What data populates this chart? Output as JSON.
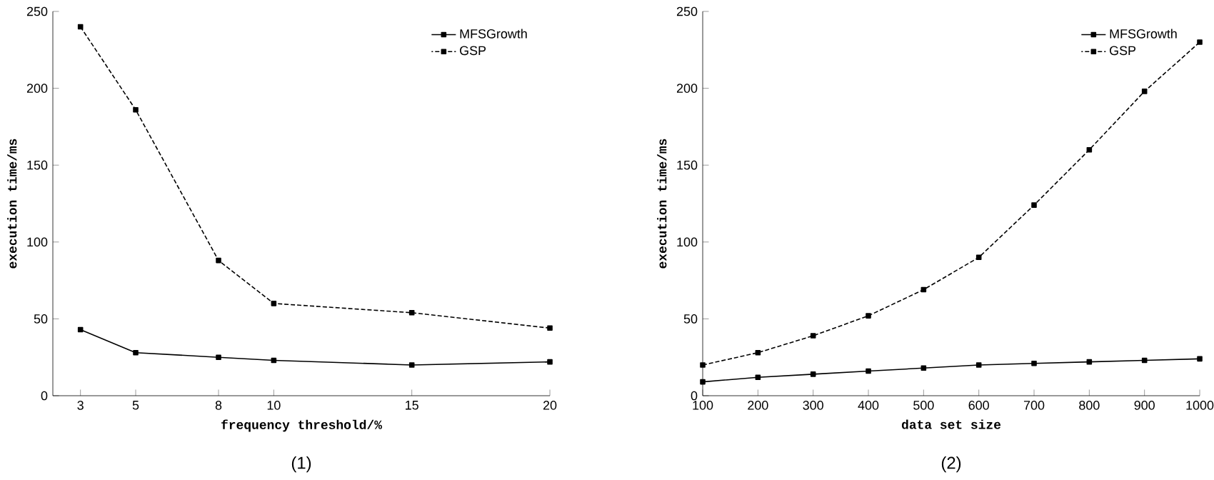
{
  "chart_data": [
    {
      "type": "line",
      "x": [
        3,
        5,
        8,
        10,
        15,
        20
      ],
      "xlim": [
        2,
        20
      ],
      "xticks": [
        3,
        5,
        8,
        10,
        15,
        20
      ],
      "ylim": [
        0,
        250
      ],
      "yticks": [
        0,
        50,
        100,
        150,
        200,
        250
      ],
      "xlabel": "frequency threshold/%",
      "ylabel": "execution time/ms",
      "marker": "square",
      "legend": "top right",
      "grid": false,
      "annotations": [
        "(1)"
      ],
      "series": [
        {
          "name": "MFSGrowth",
          "color": "#000000",
          "line_style": "solid",
          "values": [
            43,
            28,
            25,
            23,
            20,
            22
          ]
        },
        {
          "name": "GSP",
          "color": "#000000",
          "line_style": "dashed",
          "values": [
            240,
            186,
            88,
            60,
            54,
            44
          ]
        }
      ]
    },
    {
      "type": "line",
      "x": [
        100,
        200,
        300,
        400,
        500,
        600,
        700,
        800,
        900,
        1000
      ],
      "xlim": [
        100,
        1000
      ],
      "xticks": [
        100,
        200,
        300,
        400,
        500,
        600,
        700,
        800,
        900,
        1000
      ],
      "ylim": [
        0,
        250
      ],
      "yticks": [
        0,
        50,
        100,
        150,
        200,
        250
      ],
      "xlabel": "data set size",
      "ylabel": "execution time/ms",
      "marker": "square",
      "legend": "top right",
      "grid": false,
      "annotations": [
        "(2)"
      ],
      "series": [
        {
          "name": "MFSGrowth",
          "color": "#000000",
          "line_style": "solid",
          "values": [
            9,
            12,
            14,
            16,
            18,
            20,
            21,
            22,
            23,
            24
          ]
        },
        {
          "name": "GSP",
          "color": "#000000",
          "line_style": "dashed",
          "values": [
            20,
            28,
            39,
            52,
            69,
            90,
            124,
            160,
            198,
            230
          ]
        }
      ]
    }
  ]
}
